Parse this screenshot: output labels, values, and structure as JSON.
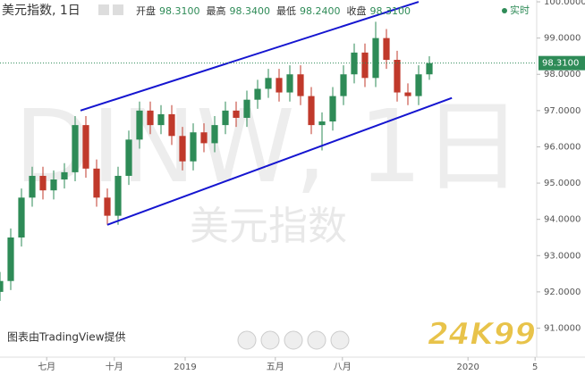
{
  "header": {
    "symbol": "美元指数, 1日",
    "fields": [
      {
        "label": "开盘",
        "value": "98.3100"
      },
      {
        "label": "最高",
        "value": "98.3400"
      },
      {
        "label": "最低",
        "value": "98.2400"
      },
      {
        "label": "收盘",
        "value": "98.3100"
      }
    ],
    "realtime": "实时"
  },
  "watermark": {
    "symbol": "DINW, 1日",
    "name": "美元指数"
  },
  "credit": "图表由TradingView提供",
  "logo": "24K99",
  "chart_data": {
    "type": "candlestick",
    "x": [
      0,
      2,
      4,
      6,
      8,
      10,
      12,
      14,
      16,
      18,
      20,
      22,
      24,
      26,
      28,
      30,
      32,
      34,
      36,
      38,
      40,
      42,
      44,
      46,
      48,
      50,
      52,
      54,
      56,
      58,
      60,
      62,
      64,
      66,
      68,
      70,
      72,
      74,
      76,
      78,
      80
    ],
    "open": [
      92.0,
      92.3,
      93.5,
      94.6,
      95.2,
      94.8,
      95.1,
      95.3,
      96.6,
      95.4,
      94.6,
      94.1,
      95.2,
      96.2,
      97.0,
      96.6,
      96.9,
      96.3,
      95.6,
      96.4,
      96.1,
      96.6,
      97.0,
      96.8,
      97.3,
      97.6,
      97.9,
      97.5,
      98.0,
      97.4,
      96.6,
      96.7,
      97.4,
      98.0,
      98.6,
      97.9,
      99.0,
      98.4,
      97.5,
      97.4,
      98.0
    ],
    "high": [
      92.55,
      93.75,
      94.85,
      95.45,
      95.45,
      95.35,
      95.55,
      96.85,
      96.85,
      95.65,
      94.85,
      95.45,
      96.45,
      97.25,
      97.25,
      97.15,
      97.15,
      96.55,
      96.65,
      96.65,
      96.85,
      97.25,
      97.25,
      97.55,
      97.85,
      98.15,
      98.15,
      98.25,
      98.25,
      97.65,
      96.95,
      97.65,
      98.25,
      98.85,
      98.85,
      99.45,
      99.25,
      98.65,
      97.75,
      98.25,
      98.5
    ],
    "low": [
      91.75,
      92.05,
      93.25,
      94.35,
      94.55,
      94.55,
      94.85,
      95.05,
      95.15,
      94.35,
      93.85,
      93.85,
      94.95,
      95.95,
      96.35,
      96.35,
      96.05,
      95.35,
      95.35,
      95.85,
      95.85,
      96.35,
      96.55,
      96.55,
      97.05,
      97.35,
      97.25,
      97.25,
      97.15,
      96.35,
      95.9,
      96.45,
      97.15,
      97.75,
      97.65,
      97.65,
      98.15,
      97.25,
      97.15,
      97.15,
      97.85
    ],
    "close": [
      92.3,
      93.5,
      94.6,
      95.2,
      94.8,
      95.1,
      95.3,
      96.6,
      95.4,
      94.6,
      94.1,
      95.2,
      96.2,
      97.0,
      96.6,
      96.9,
      96.3,
      95.6,
      96.4,
      96.1,
      96.6,
      97.0,
      96.8,
      97.3,
      97.6,
      97.9,
      97.5,
      98.0,
      97.4,
      96.6,
      96.7,
      97.4,
      98.0,
      98.6,
      97.9,
      99.0,
      98.4,
      97.5,
      97.4,
      98.0,
      98.31
    ],
    "up_color": "#2e8b57",
    "down_color": "#c0392b",
    "trend_lines": [
      {
        "x": [
          15,
          78
        ],
        "y": [
          97.0,
          100.0
        ]
      },
      {
        "x": [
          20,
          84.2
        ],
        "y": [
          93.85,
          97.35
        ]
      }
    ],
    "trend_color": "#1515d0",
    "last_price": {
      "value": 98.31,
      "label": "98.3100"
    },
    "xlim": [
      0,
      100
    ],
    "xticks": [
      {
        "value": 8.7,
        "label": "七月"
      },
      {
        "value": 21.3,
        "label": "十月"
      },
      {
        "value": 34.5,
        "label": "2019"
      },
      {
        "value": 51.3,
        "label": "五月"
      },
      {
        "value": 63.8,
        "label": "八月"
      },
      {
        "value": 87.2,
        "label": "2020"
      },
      {
        "value": 99.7,
        "label": "5"
      }
    ],
    "ylim": [
      90.2,
      100.05
    ],
    "yticks": [
      {
        "value": 91,
        "label": "91.0000"
      },
      {
        "value": 92,
        "label": "92.0000"
      },
      {
        "value": 93,
        "label": "93.0000"
      },
      {
        "value": 94,
        "label": "94.0000"
      },
      {
        "value": 95,
        "label": "95.0000"
      },
      {
        "value": 96,
        "label": "96.0000"
      },
      {
        "value": 97,
        "label": "97.0000"
      },
      {
        "value": 98,
        "label": "98.0000"
      },
      {
        "value": 99,
        "label": "99.0000"
      },
      {
        "value": 100,
        "label": "100.0000"
      }
    ]
  }
}
